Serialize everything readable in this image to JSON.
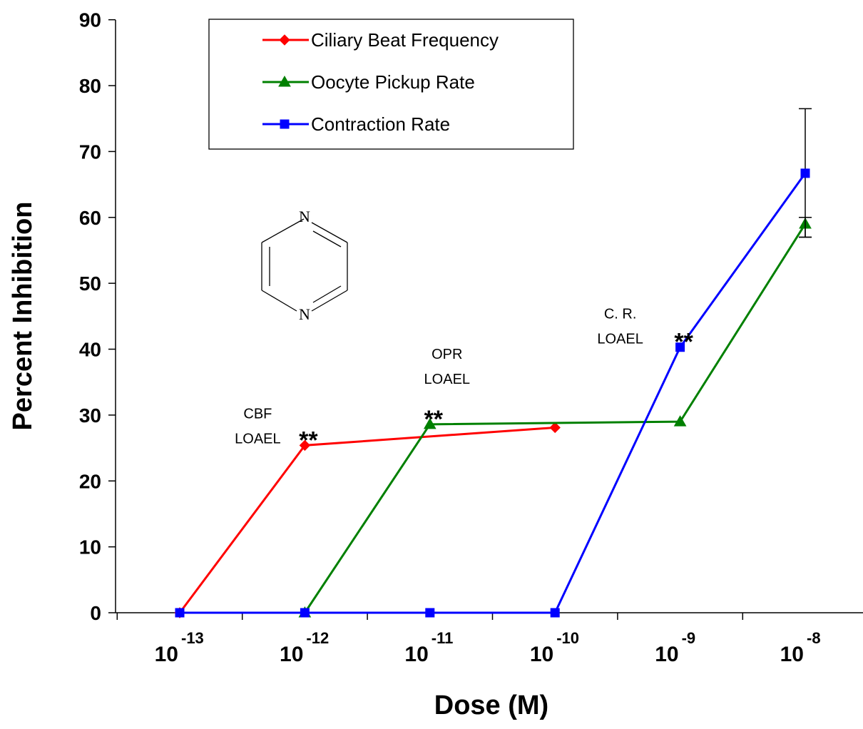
{
  "chart_data": {
    "type": "line",
    "title": "",
    "xlabel": "Dose (M)",
    "ylabel": "Percent Inhibition",
    "x_scale": "log",
    "ylim": [
      0,
      90
    ],
    "yticks": [
      "0",
      "10",
      "20",
      "30",
      "40",
      "50",
      "60",
      "70",
      "80",
      "90"
    ],
    "xticks": [
      {
        "base": "10",
        "exp": "-13",
        "dose": 1e-13
      },
      {
        "base": "10",
        "exp": "-12",
        "dose": 1e-12
      },
      {
        "base": "10",
        "exp": "-11",
        "dose": 1e-11
      },
      {
        "base": "10",
        "exp": "-10",
        "dose": 1e-10
      },
      {
        "base": "10",
        "exp": "-9",
        "dose": 1e-09
      },
      {
        "base": "10",
        "exp": "-8",
        "dose": 1e-08
      }
    ],
    "legend_position": "top-left",
    "series": [
      {
        "name": "Ciliary Beat Frequency",
        "color": "#ff0000",
        "marker": "diamond",
        "points": [
          {
            "dose": 1e-13,
            "value": 0
          },
          {
            "dose": 1e-12,
            "value": 25.4
          },
          {
            "dose": 1e-10,
            "value": 28.1
          }
        ]
      },
      {
        "name": "Oocyte Pickup Rate",
        "color": "#008000",
        "marker": "triangle",
        "points": [
          {
            "dose": 1e-12,
            "value": 0
          },
          {
            "dose": 1e-11,
            "value": 28.6
          },
          {
            "dose": 1e-09,
            "value": 29.0
          },
          {
            "dose": 1e-08,
            "value": 59.0
          }
        ],
        "error_bars": [
          {
            "dose": 1e-08,
            "low": 57.0,
            "high": 60.0
          }
        ]
      },
      {
        "name": "Contraction Rate",
        "color": "#0000ff",
        "marker": "square",
        "points": [
          {
            "dose": 1e-13,
            "value": 0
          },
          {
            "dose": 1e-12,
            "value": 0
          },
          {
            "dose": 1e-11,
            "value": 0
          },
          {
            "dose": 1e-10,
            "value": 0
          },
          {
            "dose": 1e-09,
            "value": 40.3
          },
          {
            "dose": 1e-08,
            "value": 66.7
          }
        ],
        "error_bars": [
          {
            "dose": 1e-08,
            "low": 57.0,
            "high": 76.5
          }
        ]
      }
    ],
    "annotations": [
      {
        "lines": [
          "CBF",
          "LOAEL"
        ],
        "stars": "**",
        "dose": 1e-12,
        "value": 25.4
      },
      {
        "lines": [
          "OPR",
          "LOAEL"
        ],
        "stars": "**",
        "dose": 1e-11,
        "value": 28.6
      },
      {
        "lines": [
          "C. R.",
          "LOAEL"
        ],
        "stars": "**",
        "dose": 1e-09,
        "value": 40.3
      }
    ],
    "molecule": {
      "atoms": [
        "N",
        "N"
      ]
    }
  }
}
